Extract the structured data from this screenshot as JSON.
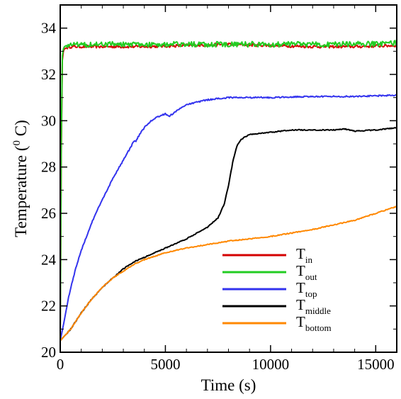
{
  "chart_data": {
    "type": "line",
    "xlabel": "Time (s)",
    "ylabel": {
      "main": "Temperature (",
      "sup": "0",
      "tail": " C)"
    },
    "xlim": [
      0,
      16000
    ],
    "ylim": [
      20,
      35
    ],
    "xticks": [
      0,
      5000,
      10000,
      15000
    ],
    "yticks": [
      20,
      22,
      24,
      26,
      28,
      30,
      32,
      34
    ],
    "grid": false,
    "legend_position": "bottom-right",
    "series": [
      {
        "name": "T",
        "sub": "in",
        "color": "#d40000",
        "noise": 0.06,
        "x": [
          0,
          50,
          100,
          150,
          200,
          300,
          500,
          1000,
          2000,
          4000,
          6000,
          8000,
          10000,
          12000,
          14000,
          16000
        ],
        "y": [
          20.5,
          28.5,
          32.6,
          33.0,
          33.1,
          33.15,
          33.2,
          33.2,
          33.2,
          33.2,
          33.25,
          33.3,
          33.25,
          33.2,
          33.2,
          33.25
        ]
      },
      {
        "name": "T",
        "sub": "out",
        "color": "#22cc22",
        "noise": 0.12,
        "x": [
          0,
          50,
          100,
          150,
          200,
          300,
          500,
          1000,
          2000,
          4000,
          6000,
          8000,
          10000,
          12000,
          14000,
          16000
        ],
        "y": [
          20.5,
          29.0,
          32.8,
          33.1,
          33.2,
          33.25,
          33.3,
          33.3,
          33.3,
          33.3,
          33.3,
          33.3,
          33.3,
          33.3,
          33.3,
          33.35
        ]
      },
      {
        "name": "T",
        "sub": "top",
        "color": "#3333ee",
        "noise": 0.03,
        "x": [
          0,
          200,
          400,
          700,
          1000,
          1500,
          2000,
          2500,
          3000,
          3500,
          3600,
          3700,
          4000,
          4200,
          4500,
          5000,
          5200,
          5500,
          6000,
          7000,
          8000,
          9000,
          10000,
          12000,
          14000,
          16000
        ],
        "y": [
          20.5,
          21.4,
          22.4,
          23.5,
          24.4,
          25.6,
          26.6,
          27.5,
          28.3,
          29.1,
          29.1,
          29.3,
          29.7,
          29.9,
          30.1,
          30.3,
          30.2,
          30.4,
          30.7,
          30.9,
          31.0,
          31.0,
          31.0,
          31.05,
          31.05,
          31.1
        ]
      },
      {
        "name": "T",
        "sub": "middle",
        "color": "#000000",
        "noise": 0.02,
        "x": [
          0,
          200,
          500,
          1000,
          1500,
          2000,
          2500,
          3000,
          3500,
          4000,
          5000,
          6000,
          7000,
          7500,
          7800,
          8000,
          8200,
          8400,
          8600,
          9000,
          10000,
          11000,
          12000,
          13000,
          13500,
          14000,
          15000,
          16000
        ],
        "y": [
          20.5,
          20.7,
          21.0,
          21.7,
          22.3,
          22.8,
          23.2,
          23.6,
          23.9,
          24.1,
          24.5,
          24.9,
          25.4,
          25.8,
          26.4,
          27.2,
          28.2,
          28.9,
          29.2,
          29.4,
          29.5,
          29.6,
          29.6,
          29.6,
          29.65,
          29.55,
          29.6,
          29.7
        ]
      },
      {
        "name": "T",
        "sub": "bottom",
        "color": "#ff8800",
        "noise": 0.02,
        "x": [
          0,
          200,
          500,
          1000,
          1500,
          2000,
          2500,
          3000,
          3500,
          4000,
          5000,
          6000,
          7000,
          8000,
          9000,
          10000,
          11000,
          12000,
          13000,
          14000,
          15000,
          16000
        ],
        "y": [
          20.5,
          20.7,
          21.0,
          21.7,
          22.3,
          22.8,
          23.2,
          23.5,
          23.8,
          24.0,
          24.3,
          24.5,
          24.65,
          24.8,
          24.9,
          25.0,
          25.15,
          25.3,
          25.5,
          25.7,
          26.0,
          26.3
        ]
      }
    ]
  }
}
